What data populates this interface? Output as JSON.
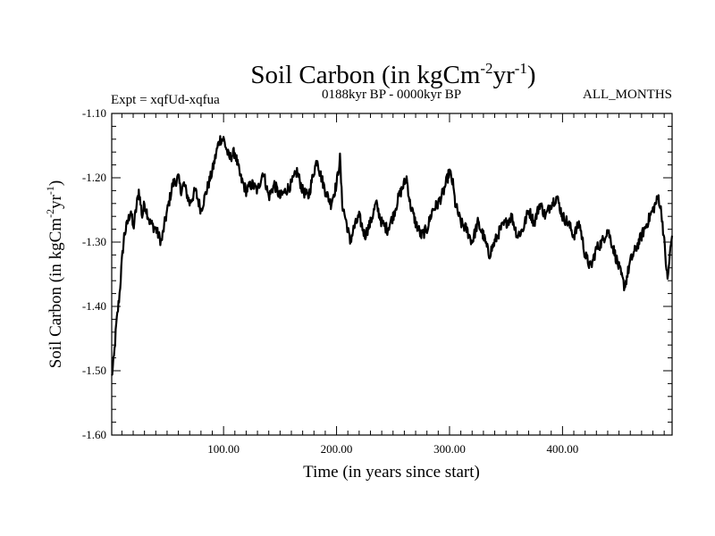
{
  "chart_data": {
    "type": "line",
    "title": "Soil Carbon (in kgCm",
    "title_unit_sup1": "-2",
    "title_unit_mid": "yr",
    "title_unit_sup2": "-1",
    "title_unit_end": ")",
    "expt_label": "Expt = xqfUd-xqfua",
    "period_label": "0188kyr BP - 0000kyr BP",
    "months_label": "ALL_MONTHS",
    "xlabel": "Time (in years since start)",
    "ylabel_main": "Soil Carbon (in kgCm",
    "ylabel_sup1": "-2",
    "ylabel_mid": "yr",
    "ylabel_sup2": "-1",
    "ylabel_end": ")",
    "xlim": [
      1,
      497
    ],
    "ylim": [
      -1.6,
      -1.1
    ],
    "x_ticks": [
      100,
      200,
      300,
      400
    ],
    "x_tick_labels": [
      "100.00",
      "200.00",
      "300.00",
      "400.00"
    ],
    "y_ticks": [
      -1.1,
      -1.2,
      -1.3,
      -1.4,
      -1.5,
      -1.6
    ],
    "y_tick_labels": [
      "-1.10",
      "-1.20",
      "-1.30",
      "-1.40",
      "-1.50",
      "-1.60"
    ],
    "series": [
      {
        "name": "Soil Carbon",
        "color": "#000000",
        "x": [
          1,
          3,
          5,
          8,
          10,
          12,
          15,
          18,
          20,
          25,
          28,
          30,
          35,
          40,
          45,
          48,
          55,
          60,
          62,
          65,
          70,
          75,
          80,
          85,
          90,
          95,
          97,
          100,
          105,
          110,
          115,
          120,
          125,
          130,
          135,
          140,
          145,
          150,
          155,
          160,
          165,
          170,
          175,
          180,
          183,
          185,
          190,
          195,
          200,
          203,
          205,
          210,
          212,
          215,
          220,
          225,
          230,
          235,
          240,
          245,
          250,
          255,
          262,
          265,
          270,
          275,
          280,
          285,
          290,
          295,
          300,
          303,
          305,
          310,
          315,
          320,
          325,
          330,
          335,
          340,
          345,
          350,
          355,
          360,
          365,
          370,
          375,
          380,
          385,
          390,
          395,
          400,
          405,
          410,
          415,
          420,
          425,
          430,
          435,
          440,
          445,
          450,
          455,
          460,
          465,
          470,
          475,
          480,
          485,
          488,
          490,
          493,
          495,
          497
        ],
        "values": [
          -1.51,
          -1.48,
          -1.43,
          -1.38,
          -1.33,
          -1.29,
          -1.27,
          -1.25,
          -1.28,
          -1.22,
          -1.26,
          -1.24,
          -1.27,
          -1.28,
          -1.3,
          -1.27,
          -1.21,
          -1.2,
          -1.22,
          -1.21,
          -1.24,
          -1.22,
          -1.25,
          -1.22,
          -1.19,
          -1.15,
          -1.14,
          -1.14,
          -1.17,
          -1.16,
          -1.2,
          -1.22,
          -1.21,
          -1.22,
          -1.19,
          -1.23,
          -1.21,
          -1.23,
          -1.22,
          -1.21,
          -1.19,
          -1.22,
          -1.23,
          -1.19,
          -1.17,
          -1.19,
          -1.22,
          -1.24,
          -1.21,
          -1.17,
          -1.24,
          -1.28,
          -1.3,
          -1.28,
          -1.26,
          -1.29,
          -1.27,
          -1.24,
          -1.27,
          -1.28,
          -1.26,
          -1.23,
          -1.2,
          -1.24,
          -1.27,
          -1.29,
          -1.28,
          -1.25,
          -1.24,
          -1.22,
          -1.19,
          -1.21,
          -1.24,
          -1.27,
          -1.28,
          -1.3,
          -1.27,
          -1.29,
          -1.32,
          -1.3,
          -1.28,
          -1.27,
          -1.26,
          -1.29,
          -1.28,
          -1.25,
          -1.27,
          -1.24,
          -1.26,
          -1.24,
          -1.23,
          -1.26,
          -1.27,
          -1.29,
          -1.27,
          -1.32,
          -1.34,
          -1.31,
          -1.3,
          -1.28,
          -1.31,
          -1.34,
          -1.37,
          -1.33,
          -1.31,
          -1.29,
          -1.27,
          -1.25,
          -1.23,
          -1.26,
          -1.3,
          -1.36,
          -1.32,
          -1.29
        ]
      }
    ]
  }
}
